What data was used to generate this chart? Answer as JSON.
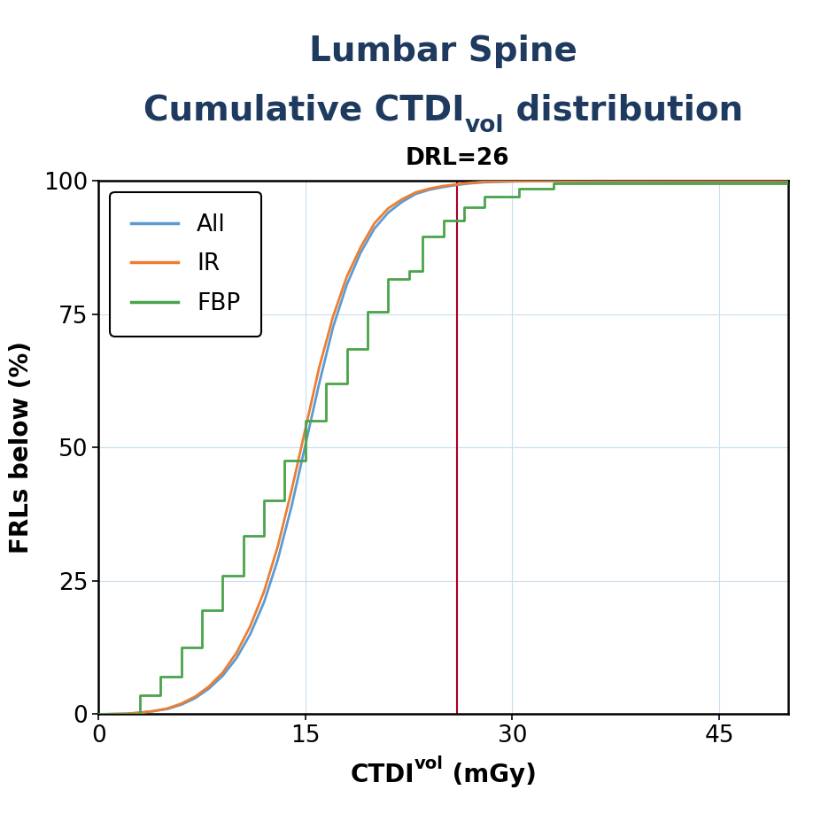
{
  "title_line1": "Lumbar Spine",
  "title_line2_pre": "Cumulative CTDI",
  "title_vol_sub": "vol",
  "title_line2_post": " distribution",
  "drl_label": "DRL=26",
  "drl_value": 26,
  "xlabel_main": "CTDI",
  "xlabel_sub": "vol",
  "xlabel_suffix": " (mGy)",
  "ylabel": "FRLs below (%)",
  "xlim": [
    0,
    50
  ],
  "ylim": [
    0,
    100
  ],
  "xticks": [
    0,
    15,
    30,
    45
  ],
  "yticks": [
    0,
    25,
    50,
    75,
    100
  ],
  "title_color": "#1e3a5f",
  "drl_color": "#000000",
  "grid_color": "#c8ddf0",
  "vline_color": "#aa0020",
  "all_color": "#5b9bd5",
  "ir_color": "#ed7d31",
  "fbp_color": "#4aa44a",
  "all_x": [
    0,
    2,
    3,
    4,
    5,
    6,
    7,
    8,
    9,
    10,
    11,
    12,
    13,
    14,
    15,
    16,
    17,
    18,
    19,
    20,
    21,
    22,
    23,
    24,
    25,
    26,
    27,
    28,
    30,
    32,
    35,
    40,
    48,
    50
  ],
  "all_y": [
    0,
    0.1,
    0.3,
    0.6,
    1.0,
    1.8,
    3.0,
    4.8,
    7.2,
    10.5,
    15.0,
    21.0,
    29.0,
    39.0,
    50.5,
    62.0,
    72.5,
    80.5,
    86.5,
    91.0,
    94.0,
    96.0,
    97.5,
    98.3,
    98.8,
    99.2,
    99.5,
    99.7,
    99.85,
    99.9,
    99.95,
    99.97,
    99.99,
    100.0
  ],
  "ir_x": [
    0,
    2,
    3,
    4,
    5,
    6,
    7,
    8,
    9,
    10,
    11,
    12,
    13,
    14,
    15,
    16,
    17,
    18,
    19,
    20,
    21,
    22,
    23,
    24,
    25,
    26,
    27,
    28,
    30,
    32,
    35,
    40,
    48,
    50
  ],
  "ir_y": [
    0,
    0.1,
    0.3,
    0.6,
    1.1,
    2.0,
    3.3,
    5.2,
    7.8,
    11.5,
    16.5,
    23.0,
    31.5,
    42.0,
    53.5,
    65.0,
    74.5,
    82.0,
    87.5,
    92.0,
    94.8,
    96.5,
    97.8,
    98.5,
    99.0,
    99.3,
    99.6,
    99.8,
    99.88,
    99.92,
    99.96,
    99.98,
    99.99,
    100.0
  ],
  "fbp_x": [
    0,
    2.8,
    3.0,
    4.0,
    4.5,
    5.5,
    6.0,
    7.0,
    7.5,
    8.5,
    9.0,
    10.0,
    10.5,
    11.5,
    12.0,
    13.0,
    13.5,
    14.5,
    15.0,
    16.0,
    16.5,
    17.5,
    18.0,
    19.0,
    19.5,
    20.5,
    21.0,
    22.5,
    23.5,
    25.0,
    26.5,
    28.0,
    30.5,
    33.0,
    50
  ],
  "fbp_y": [
    0,
    0,
    3.5,
    3.5,
    7.0,
    7.0,
    12.5,
    12.5,
    19.5,
    19.5,
    26.0,
    26.0,
    33.5,
    33.5,
    40.0,
    40.0,
    47.5,
    47.5,
    55.0,
    55.0,
    62.0,
    62.0,
    68.5,
    68.5,
    75.5,
    75.5,
    81.5,
    83.0,
    89.5,
    92.5,
    95.0,
    97.0,
    98.5,
    99.5,
    100.0
  ]
}
